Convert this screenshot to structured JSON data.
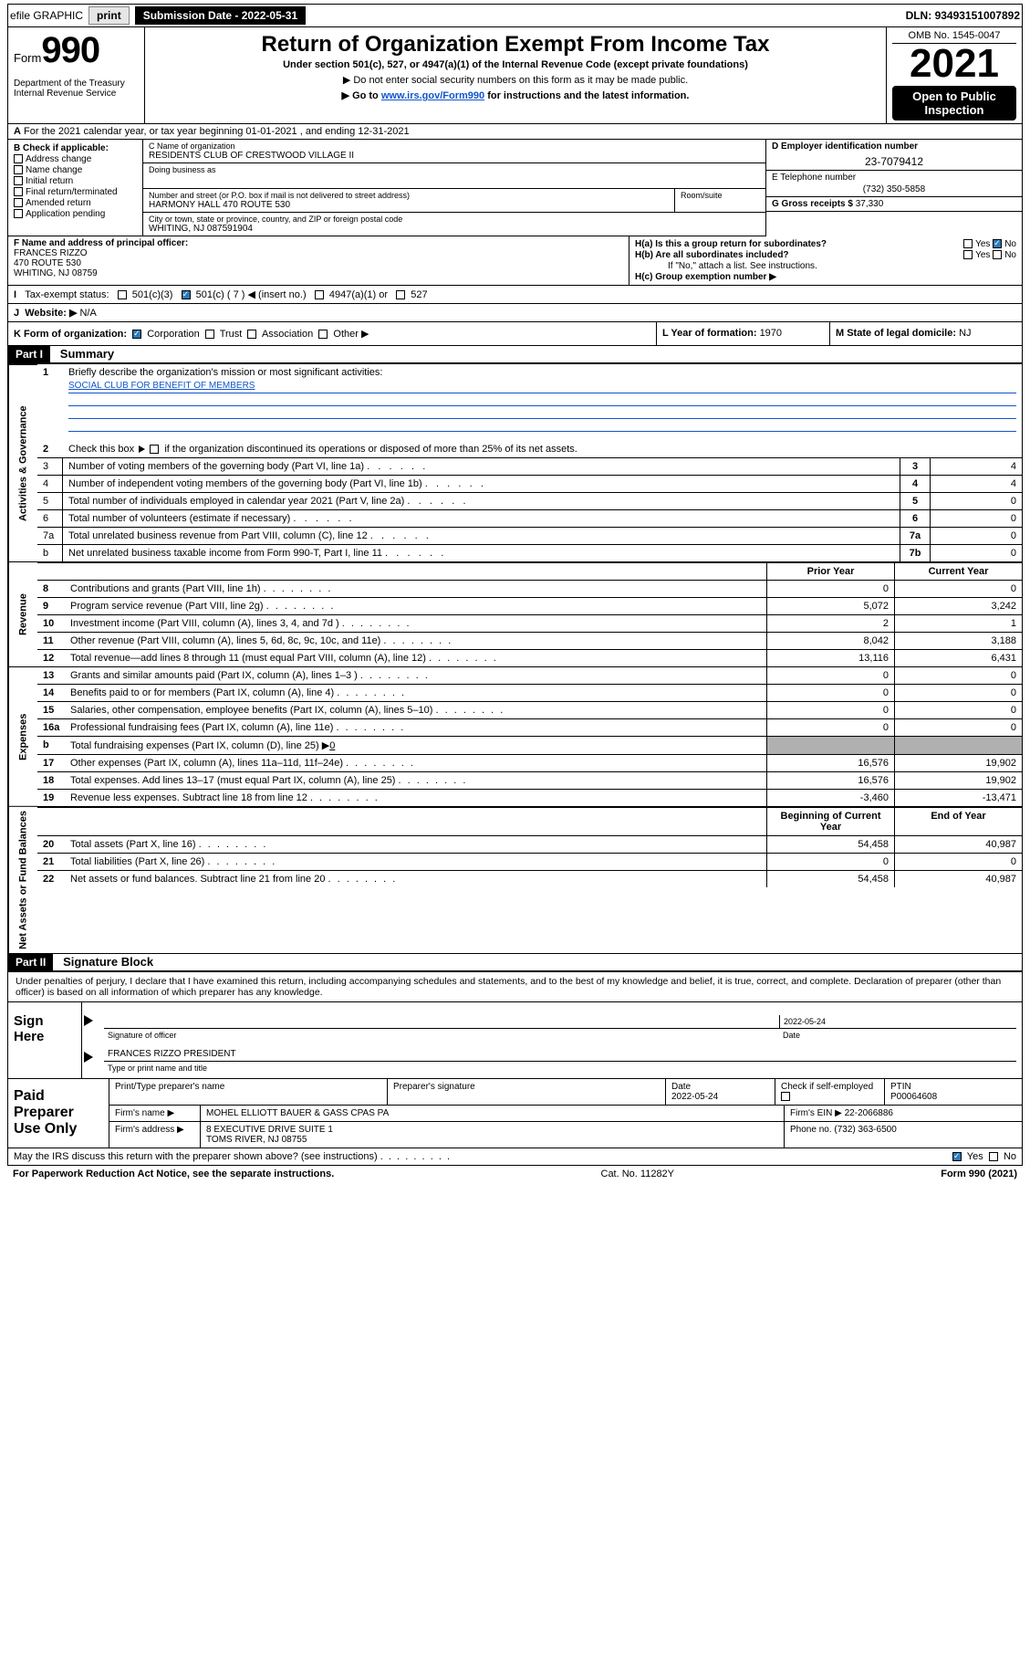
{
  "topbar": {
    "efile": "efile GRAPHIC",
    "print": "print",
    "submission_label": "Submission Date - ",
    "submission_date": "2022-05-31",
    "dln_label": "DLN: ",
    "dln": "93493151007892"
  },
  "header": {
    "form_label": "Form",
    "form_number": "990",
    "dept": "Department of the Treasury\nInternal Revenue Service",
    "title": "Return of Organization Exempt From Income Tax",
    "subtitle": "Under section 501(c), 527, or 4947(a)(1) of the Internal Revenue Code (except private foundations)",
    "line1": "▶ Do not enter social security numbers on this form as it may be made public.",
    "line2_pre": "▶ Go to ",
    "line2_link": "www.irs.gov/Form990",
    "line2_post": " for instructions and the latest information.",
    "omb": "OMB No. 1545-0047",
    "year": "2021",
    "open": "Open to Public Inspection"
  },
  "rowA": "For the 2021 calendar year, or tax year beginning 01-01-2021  , and ending 12-31-2021",
  "B": {
    "label": "B Check if applicable:",
    "address_change": "Address change",
    "name_change": "Name change",
    "initial_return": "Initial return",
    "final_return": "Final return/terminated",
    "amended_return": "Amended return",
    "application_pending": "Application pending"
  },
  "C": {
    "name_label": "C Name of organization",
    "name": "RESIDENTS CLUB OF CRESTWOOD VILLAGE II",
    "dba_label": "Doing business as",
    "dba": "",
    "street_label": "Number and street (or P.O. box if mail is not delivered to street address)",
    "street": "HARMONY HALL 470 ROUTE 530",
    "room_label": "Room/suite",
    "room": "",
    "city_label": "City or town, state or province, country, and ZIP or foreign postal code",
    "city": "WHITING, NJ  087591904"
  },
  "D": {
    "label": "D Employer identification number",
    "value": "23-7079412"
  },
  "E": {
    "label": "E Telephone number",
    "value": "(732) 350-5858"
  },
  "G": {
    "label": "G Gross receipts $ ",
    "value": "37,330"
  },
  "F": {
    "label": "F  Name and address of principal officer:",
    "name": "FRANCES RIZZO",
    "street": "470 ROUTE 530",
    "city": "WHITING, NJ  08759"
  },
  "H": {
    "a_label": "H(a)  Is this a group return for subordinates?",
    "a_yes": "Yes",
    "a_no": "No",
    "b_label": "H(b)  Are all subordinates included?",
    "b_note": "If \"No,\" attach a list. See instructions.",
    "c_label": "H(c)  Group exemption number ▶"
  },
  "I": {
    "label": "Tax-exempt status:",
    "opt1": "501(c)(3)",
    "opt2_pre": "501(c) ( ",
    "opt2_val": "7",
    "opt2_post": " ) ◀ (insert no.)",
    "opt3": "4947(a)(1) or",
    "opt4": "527"
  },
  "J": {
    "label": "Website: ▶",
    "value": "N/A"
  },
  "K": {
    "label": "K Form of organization:",
    "corp": "Corporation",
    "trust": "Trust",
    "assoc": "Association",
    "other": "Other ▶"
  },
  "L": {
    "label": "L Year of formation: ",
    "value": "1970"
  },
  "M": {
    "label": "M State of legal domicile: ",
    "value": "NJ"
  },
  "partI": {
    "hdr": "Part I",
    "title": "Summary",
    "q1": "Briefly describe the organization's mission or most significant activities:",
    "mission": "SOCIAL CLUB FOR BENEFIT OF MEMBERS",
    "q2": "Check this box ▶        if the organization discontinued its operations or disposed of more than 25% of its net assets.",
    "lines_gov": [
      {
        "n": "3",
        "desc": "Number of voting members of the governing body (Part VI, line 1a)",
        "key": "3",
        "val": "4"
      },
      {
        "n": "4",
        "desc": "Number of independent voting members of the governing body (Part VI, line 1b)",
        "key": "4",
        "val": "4"
      },
      {
        "n": "5",
        "desc": "Total number of individuals employed in calendar year 2021 (Part V, line 2a)",
        "key": "5",
        "val": "0"
      },
      {
        "n": "6",
        "desc": "Total number of volunteers (estimate if necessary)",
        "key": "6",
        "val": "0"
      },
      {
        "n": "7a",
        "desc": "Total unrelated business revenue from Part VIII, column (C), line 12",
        "key": "7a",
        "val": "0"
      },
      {
        "n": "b",
        "desc": "Net unrelated business taxable income from Form 990-T, Part I, line 11",
        "key": "7b",
        "val": "0"
      }
    ],
    "col_prior": "Prior Year",
    "col_current": "Current Year",
    "revenue": [
      {
        "n": "8",
        "desc": "Contributions and grants (Part VIII, line 1h)",
        "c1": "0",
        "c2": "0"
      },
      {
        "n": "9",
        "desc": "Program service revenue (Part VIII, line 2g)",
        "c1": "5,072",
        "c2": "3,242"
      },
      {
        "n": "10",
        "desc": "Investment income (Part VIII, column (A), lines 3, 4, and 7d )",
        "c1": "2",
        "c2": "1"
      },
      {
        "n": "11",
        "desc": "Other revenue (Part VIII, column (A), lines 5, 6d, 8c, 9c, 10c, and 11e)",
        "c1": "8,042",
        "c2": "3,188"
      },
      {
        "n": "12",
        "desc": "Total revenue—add lines 8 through 11 (must equal Part VIII, column (A), line 12)",
        "c1": "13,116",
        "c2": "6,431"
      }
    ],
    "expenses": [
      {
        "n": "13",
        "desc": "Grants and similar amounts paid (Part IX, column (A), lines 1–3 )",
        "c1": "0",
        "c2": "0"
      },
      {
        "n": "14",
        "desc": "Benefits paid to or for members (Part IX, column (A), line 4)",
        "c1": "0",
        "c2": "0"
      },
      {
        "n": "15",
        "desc": "Salaries, other compensation, employee benefits (Part IX, column (A), lines 5–10)",
        "c1": "0",
        "c2": "0"
      },
      {
        "n": "16a",
        "desc": "Professional fundraising fees (Part IX, column (A), line 11e)",
        "c1": "0",
        "c2": "0"
      }
    ],
    "exp_b": {
      "n": "b",
      "desc": "Total fundraising expenses (Part IX, column (D), line 25) ▶",
      "val": "0"
    },
    "expenses2": [
      {
        "n": "17",
        "desc": "Other expenses (Part IX, column (A), lines 11a–11d, 11f–24e)",
        "c1": "16,576",
        "c2": "19,902"
      },
      {
        "n": "18",
        "desc": "Total expenses. Add lines 13–17 (must equal Part IX, column (A), line 25)",
        "c1": "16,576",
        "c2": "19,902"
      },
      {
        "n": "19",
        "desc": "Revenue less expenses. Subtract line 18 from line 12",
        "c1": "-3,460",
        "c2": "-13,471"
      }
    ],
    "col_begin": "Beginning of Current Year",
    "col_end": "End of Year",
    "assets": [
      {
        "n": "20",
        "desc": "Total assets (Part X, line 16)",
        "c1": "54,458",
        "c2": "40,987"
      },
      {
        "n": "21",
        "desc": "Total liabilities (Part X, line 26)",
        "c1": "0",
        "c2": "0"
      },
      {
        "n": "22",
        "desc": "Net assets or fund balances. Subtract line 21 from line 20",
        "c1": "54,458",
        "c2": "40,987"
      }
    ],
    "side_gov": "Activities & Governance",
    "side_rev": "Revenue",
    "side_exp": "Expenses",
    "side_net": "Net Assets or Fund Balances"
  },
  "partII": {
    "hdr": "Part II",
    "title": "Signature Block",
    "decl": "Under penalties of perjury, I declare that I have examined this return, including accompanying schedules and statements, and to the best of my knowledge and belief, it is true, correct, and complete. Declaration of preparer (other than officer) is based on all information of which preparer has any knowledge."
  },
  "sign": {
    "label": "Sign Here",
    "sig_officer": "Signature of officer",
    "date": "2022-05-24",
    "date_label": "Date",
    "name": "FRANCES RIZZO  PRESIDENT",
    "name_label": "Type or print name and title"
  },
  "paid": {
    "label": "Paid Preparer Use Only",
    "print_label": "Print/Type preparer's name",
    "prep_sig": "Preparer's signature",
    "date_label": "Date",
    "date": "2022-05-24",
    "check_label": "Check         if self-employed",
    "ptin_label": "PTIN",
    "ptin": "P00064608",
    "firm_name_label": "Firm's name      ▶",
    "firm_name": "MOHEL ELLIOTT BAUER & GASS CPAS PA",
    "firm_ein_label": "Firm's EIN ▶ ",
    "firm_ein": "22-2066886",
    "firm_addr_label": "Firm's address ▶",
    "firm_addr1": "8 EXECUTIVE DRIVE SUITE 1",
    "firm_addr2": "TOMS RIVER, NJ  08755",
    "phone_label": "Phone no. ",
    "phone": "(732) 363-6500"
  },
  "may": {
    "q": "May the IRS discuss this return with the preparer shown above? (see instructions)",
    "yes": "Yes",
    "no": "No"
  },
  "footer": {
    "left": "For Paperwork Reduction Act Notice, see the separate instructions.",
    "mid": "Cat. No. 11282Y",
    "right": "Form 990 (2021)"
  }
}
